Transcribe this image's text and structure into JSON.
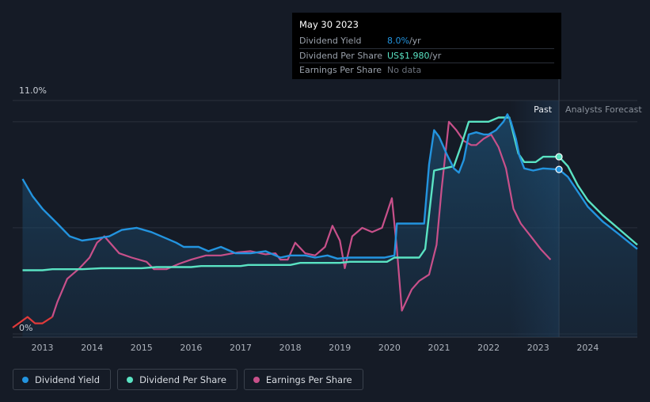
{
  "tooltip": {
    "date": "May 30 2023",
    "rows": [
      {
        "label": "Dividend Yield",
        "value": "8.0%",
        "unit": " /yr"
      },
      {
        "label": "Dividend Per Share",
        "value": "US$1.980",
        "unit": " /yr"
      },
      {
        "label": "Earnings Per Share",
        "value": "No data",
        "unit": ""
      }
    ]
  },
  "colors": {
    "dividend_yield": "#2394df",
    "dividend_per_share": "#5ae3c3",
    "earnings_per_share": "#c8508a",
    "earnings_negative": "#e03a3a",
    "background": "#151b26"
  },
  "chart_data": {
    "type": "line",
    "title": "",
    "y_axis": {
      "min": 0,
      "max": 11.0,
      "labels": [
        "11.0%",
        "0%"
      ]
    },
    "x_axis": {
      "range": [
        2012.4,
        2025.0
      ],
      "ticks": [
        "2013",
        "2014",
        "2015",
        "2016",
        "2017",
        "2018",
        "2019",
        "2020",
        "2021",
        "2022",
        "2023",
        "2024"
      ]
    },
    "regions": {
      "past_label": "Past",
      "forecast_label": "Analysts Forecast",
      "forecast_start": 2023.42
    },
    "legend": [
      "Dividend Yield",
      "Dividend Per Share",
      "Earnings Per Share"
    ],
    "series": [
      {
        "name": "Dividend Yield",
        "key": "dividend_yield",
        "points": [
          [
            2012.6,
            7.3
          ],
          [
            2012.8,
            6.5
          ],
          [
            2013.0,
            5.9
          ],
          [
            2013.3,
            5.2
          ],
          [
            2013.55,
            4.6
          ],
          [
            2013.8,
            4.4
          ],
          [
            2014.1,
            4.5
          ],
          [
            2014.35,
            4.6
          ],
          [
            2014.6,
            4.9
          ],
          [
            2014.9,
            5.0
          ],
          [
            2015.2,
            4.8
          ],
          [
            2015.5,
            4.5
          ],
          [
            2015.7,
            4.3
          ],
          [
            2015.85,
            4.1
          ],
          [
            2016.15,
            4.1
          ],
          [
            2016.35,
            3.9
          ],
          [
            2016.6,
            4.1
          ],
          [
            2016.9,
            3.8
          ],
          [
            2017.2,
            3.8
          ],
          [
            2017.5,
            3.9
          ],
          [
            2017.8,
            3.6
          ],
          [
            2018.0,
            3.7
          ],
          [
            2018.3,
            3.7
          ],
          [
            2018.5,
            3.6
          ],
          [
            2018.75,
            3.7
          ],
          [
            2018.95,
            3.55
          ],
          [
            2019.2,
            3.6
          ],
          [
            2019.4,
            3.6
          ],
          [
            2019.65,
            3.6
          ],
          [
            2019.9,
            3.6
          ],
          [
            2020.1,
            3.7
          ],
          [
            2020.15,
            5.2
          ],
          [
            2020.5,
            5.2
          ],
          [
            2020.7,
            5.2
          ],
          [
            2020.8,
            8.0
          ],
          [
            2020.9,
            9.6
          ],
          [
            2021.0,
            9.3
          ],
          [
            2021.15,
            8.5
          ],
          [
            2021.3,
            7.8
          ],
          [
            2021.4,
            7.6
          ],
          [
            2021.5,
            8.2
          ],
          [
            2021.6,
            9.4
          ],
          [
            2021.75,
            9.5
          ],
          [
            2021.9,
            9.4
          ],
          [
            2022.0,
            9.4
          ],
          [
            2022.15,
            9.6
          ],
          [
            2022.3,
            10.0
          ],
          [
            2022.38,
            10.35
          ],
          [
            2022.45,
            10.0
          ],
          [
            2022.55,
            9.2
          ],
          [
            2022.62,
            8.4
          ],
          [
            2022.72,
            7.8
          ],
          [
            2022.9,
            7.7
          ],
          [
            2023.1,
            7.8
          ],
          [
            2023.42,
            7.75
          ],
          [
            2023.6,
            7.4
          ],
          [
            2023.8,
            6.7
          ],
          [
            2024.0,
            6.0
          ],
          [
            2024.3,
            5.3
          ],
          [
            2024.6,
            4.75
          ],
          [
            2025.0,
            4.0
          ]
        ]
      },
      {
        "name": "Dividend Per Share",
        "key": "dividend_per_share",
        "points": [
          [
            2012.6,
            3.0
          ],
          [
            2013.0,
            3.0
          ],
          [
            2013.2,
            3.05
          ],
          [
            2013.8,
            3.05
          ],
          [
            2014.2,
            3.1
          ],
          [
            2015.0,
            3.1
          ],
          [
            2015.3,
            3.15
          ],
          [
            2016.0,
            3.15
          ],
          [
            2016.2,
            3.2
          ],
          [
            2017.0,
            3.2
          ],
          [
            2017.15,
            3.25
          ],
          [
            2018.0,
            3.25
          ],
          [
            2018.2,
            3.35
          ],
          [
            2019.0,
            3.35
          ],
          [
            2019.2,
            3.4
          ],
          [
            2019.95,
            3.4
          ],
          [
            2020.1,
            3.6
          ],
          [
            2020.6,
            3.6
          ],
          [
            2020.72,
            4.0
          ],
          [
            2020.9,
            7.7
          ],
          [
            2021.3,
            7.9
          ],
          [
            2021.45,
            8.9
          ],
          [
            2021.6,
            10.0
          ],
          [
            2022.0,
            10.0
          ],
          [
            2022.2,
            10.2
          ],
          [
            2022.42,
            10.2
          ],
          [
            2022.6,
            8.5
          ],
          [
            2022.72,
            8.1
          ],
          [
            2022.95,
            8.1
          ],
          [
            2023.1,
            8.35
          ],
          [
            2023.42,
            8.35
          ],
          [
            2023.6,
            7.9
          ],
          [
            2023.8,
            7.0
          ],
          [
            2024.0,
            6.3
          ],
          [
            2024.3,
            5.6
          ],
          [
            2024.6,
            5.0
          ],
          [
            2025.0,
            4.2
          ]
        ]
      },
      {
        "name": "Earnings Per Share",
        "key": "earnings_per_share",
        "points": [
          [
            2012.4,
            0.3
          ],
          [
            2012.55,
            0.55
          ],
          [
            2012.7,
            0.8
          ],
          [
            2012.85,
            0.5
          ],
          [
            2013.0,
            0.5
          ],
          [
            2013.2,
            0.8
          ],
          [
            2013.3,
            1.5
          ],
          [
            2013.5,
            2.6
          ],
          [
            2013.75,
            3.1
          ],
          [
            2013.95,
            3.6
          ],
          [
            2014.1,
            4.3
          ],
          [
            2014.25,
            4.6
          ],
          [
            2014.4,
            4.2
          ],
          [
            2014.55,
            3.8
          ],
          [
            2014.8,
            3.6
          ],
          [
            2015.1,
            3.4
          ],
          [
            2015.25,
            3.05
          ],
          [
            2015.5,
            3.05
          ],
          [
            2015.75,
            3.3
          ],
          [
            2016.0,
            3.5
          ],
          [
            2016.3,
            3.7
          ],
          [
            2016.6,
            3.7
          ],
          [
            2016.95,
            3.85
          ],
          [
            2017.2,
            3.9
          ],
          [
            2017.5,
            3.75
          ],
          [
            2017.7,
            3.8
          ],
          [
            2017.8,
            3.5
          ],
          [
            2017.95,
            3.5
          ],
          [
            2018.1,
            4.3
          ],
          [
            2018.3,
            3.8
          ],
          [
            2018.5,
            3.7
          ],
          [
            2018.7,
            4.1
          ],
          [
            2018.85,
            5.1
          ],
          [
            2019.0,
            4.4
          ],
          [
            2019.1,
            3.1
          ],
          [
            2019.25,
            4.6
          ],
          [
            2019.45,
            5.0
          ],
          [
            2019.65,
            4.8
          ],
          [
            2019.85,
            5.0
          ],
          [
            2019.95,
            5.7
          ],
          [
            2020.05,
            6.4
          ],
          [
            2020.15,
            4.0
          ],
          [
            2020.25,
            1.1
          ],
          [
            2020.45,
            2.1
          ],
          [
            2020.6,
            2.5
          ],
          [
            2020.8,
            2.8
          ],
          [
            2020.95,
            4.2
          ],
          [
            2021.05,
            6.8
          ],
          [
            2021.2,
            10.0
          ],
          [
            2021.35,
            9.6
          ],
          [
            2021.5,
            9.1
          ],
          [
            2021.65,
            8.9
          ],
          [
            2021.75,
            8.9
          ],
          [
            2021.9,
            9.2
          ],
          [
            2022.05,
            9.4
          ],
          [
            2022.2,
            8.8
          ],
          [
            2022.35,
            7.8
          ],
          [
            2022.5,
            5.9
          ],
          [
            2022.65,
            5.2
          ],
          [
            2022.85,
            4.6
          ],
          [
            2023.05,
            4.0
          ],
          [
            2023.25,
            3.5
          ]
        ]
      }
    ],
    "markers": [
      {
        "series": "Dividend Per Share",
        "x": 2023.42,
        "y": 8.35
      },
      {
        "series": "Dividend Yield",
        "x": 2023.42,
        "y": 7.75
      }
    ]
  }
}
